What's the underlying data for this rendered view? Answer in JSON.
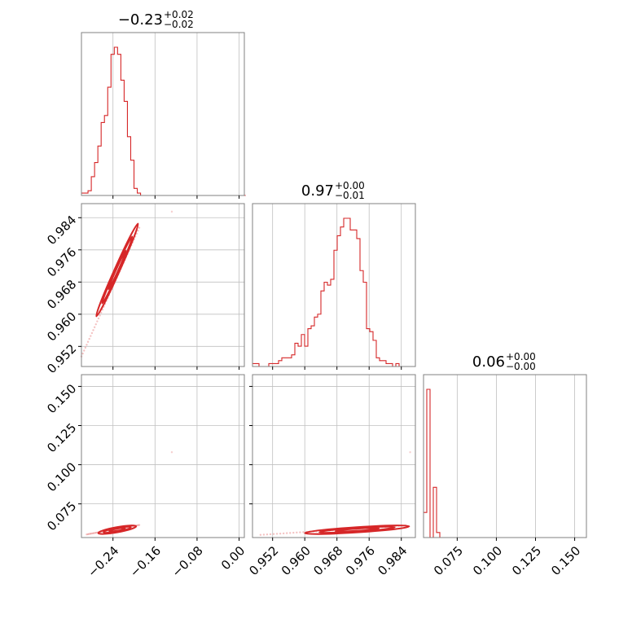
{
  "chart_data": {
    "type": "corner",
    "color": "#d62728",
    "parameters": [
      {
        "median": "0.23",
        "median_sign": "−",
        "plus": "+0.02",
        "minus": "−0.02",
        "range": [
          -0.3,
          0.01
        ],
        "ticks": [
          -0.24,
          -0.16,
          -0.08,
          0.0
        ],
        "tick_labels": [
          "−0.24",
          "−0.16",
          "−0.08",
          "0.00"
        ]
      },
      {
        "median": "0.97",
        "median_sign": "",
        "plus": "+0.00",
        "minus": "−0.01",
        "range": [
          0.947,
          0.9875
        ],
        "ticks": [
          0.952,
          0.96,
          0.968,
          0.976,
          0.984
        ],
        "tick_labels": [
          "0.952",
          "0.960",
          "0.968",
          "0.976",
          "0.984"
        ]
      },
      {
        "median": "0.06",
        "median_sign": "",
        "plus": "+0.00",
        "minus": "−0.00",
        "range": [
          0.0535,
          0.1575
        ],
        "ticks": [
          0.075,
          0.1,
          0.125,
          0.15
        ],
        "tick_labels": [
          "0.075",
          "0.100",
          "0.125",
          "0.150"
        ]
      }
    ],
    "histograms": [
      {
        "bin_edges_start": -0.3,
        "bin_width": 0.00625,
        "counts": [
          1,
          1,
          2,
          8,
          14,
          21,
          31,
          34,
          46,
          60,
          63,
          60,
          49,
          40,
          25,
          15,
          3,
          1,
          0,
          0,
          0,
          0,
          0,
          0,
          0,
          0,
          0,
          0,
          0,
          0,
          0,
          0,
          0,
          0,
          0,
          0,
          0,
          0,
          0,
          0,
          0,
          0,
          0,
          0,
          0,
          0,
          0,
          0,
          0,
          0
        ]
      },
      {
        "bin_edges_start": 0.947,
        "bin_width": 0.00081,
        "counts": [
          1,
          1,
          0,
          0,
          0,
          1,
          1,
          1,
          2,
          3,
          3,
          3,
          4,
          8,
          7,
          11,
          7,
          13,
          14,
          17,
          18,
          26,
          29,
          28,
          30,
          40,
          45,
          48,
          51,
          51,
          47,
          47,
          44,
          33,
          29,
          13,
          12,
          9,
          3,
          2,
          2,
          1,
          1,
          0,
          1,
          0,
          0,
          0,
          0,
          0
        ]
      },
      {
        "bin_edges_start": 0.0535,
        "bin_width": 0.00208,
        "counts": [
          10,
          59,
          0,
          20,
          2,
          0,
          0,
          0,
          0,
          0,
          0,
          0,
          0,
          0,
          0,
          0,
          0,
          0,
          0,
          0,
          0,
          0,
          0,
          0,
          0,
          0,
          0,
          0,
          0,
          0,
          0,
          0,
          0,
          0,
          0,
          0,
          0,
          0,
          0,
          0,
          0,
          0,
          0,
          0,
          0,
          0,
          0,
          0,
          0,
          0
        ]
      }
    ],
    "pairs": [
      {
        "x_param": 0,
        "y_param": 1,
        "line_start": [
          -0.3,
          0.9495
        ],
        "line_end": [
          -0.19,
          0.9815
        ],
        "contour_center": [
          -0.232,
          0.971
        ],
        "outlier": [
          -0.128,
          0.9855
        ]
      },
      {
        "x_param": 0,
        "y_param": 2,
        "line_start": [
          -0.29,
          0.0555
        ],
        "line_end": [
          -0.19,
          0.0615
        ],
        "contour_center": [
          -0.232,
          0.0585
        ],
        "outlier": [
          -0.128,
          0.108
        ]
      },
      {
        "x_param": 1,
        "y_param": 2,
        "line_start": [
          0.949,
          0.0552
        ],
        "line_end": [
          0.985,
          0.0612
        ],
        "contour_center": [
          0.973,
          0.0585
        ],
        "outlier": [
          0.9862,
          0.108
        ]
      }
    ]
  }
}
